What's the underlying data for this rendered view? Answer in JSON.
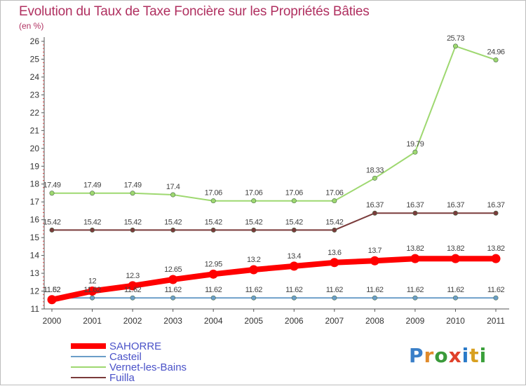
{
  "header": {
    "title": "Evolution du Taux de Taxe Foncière sur les Propriétés Bâties",
    "unit": "(en %)"
  },
  "logo": {
    "text": "Proxiti"
  },
  "chart_data": {
    "type": "line",
    "title": "Evolution du Taux de Taxe Foncière sur les Propriétés Bâties",
    "ylabel": "(en %)",
    "xlabel": "",
    "x": [
      "2000",
      "2001",
      "2002",
      "2003",
      "2004",
      "2005",
      "2006",
      "2007",
      "2008",
      "2009",
      "2010",
      "2011"
    ],
    "ylim": [
      11,
      26
    ],
    "yticks": [
      11,
      12,
      13,
      14,
      15,
      16,
      17,
      18,
      19,
      20,
      21,
      22,
      23,
      24,
      25,
      26
    ],
    "legend_position": "bottom-left",
    "grid": false,
    "series": [
      {
        "name": "SAHORRE",
        "color": "#ff0000",
        "emphasis": true,
        "values": [
          11.52,
          12,
          12.3,
          12.65,
          12.95,
          13.2,
          13.4,
          13.6,
          13.7,
          13.82,
          13.82,
          13.82
        ],
        "labels": [
          "11.52",
          "12",
          "12.3",
          "12.65",
          "12.95",
          "13.2",
          "13.4",
          "13.6",
          "13.7",
          "13.82",
          "13.82",
          "13.82"
        ]
      },
      {
        "name": "Casteil",
        "color": "#6b9ec8",
        "emphasis": false,
        "values": [
          11.62,
          11.62,
          11.62,
          11.62,
          11.62,
          11.62,
          11.62,
          11.62,
          11.62,
          11.62,
          11.62,
          11.62
        ],
        "labels": [
          "11.62",
          "11.62",
          "11.62",
          "11.62",
          "11.62",
          "11.62",
          "11.62",
          "11.62",
          "11.62",
          "11.62",
          "11.62",
          "11.62"
        ]
      },
      {
        "name": "Vernet-les-Bains",
        "color": "#9ed870",
        "emphasis": false,
        "values": [
          17.49,
          17.49,
          17.49,
          17.4,
          17.06,
          17.06,
          17.06,
          17.06,
          18.33,
          19.79,
          25.73,
          24.96
        ],
        "labels": [
          "17.49",
          "17.49",
          "17.49",
          "17.4",
          "17.06",
          "17.06",
          "17.06",
          "17.06",
          "18.33",
          "19.79",
          "25.73",
          "24.96"
        ]
      },
      {
        "name": "Fuilla",
        "color": "#7a3b3b",
        "emphasis": false,
        "values": [
          15.42,
          15.42,
          15.42,
          15.42,
          15.42,
          15.42,
          15.42,
          15.42,
          16.37,
          16.37,
          16.37,
          16.37
        ],
        "labels": [
          "15.42",
          "15.42",
          "15.42",
          "15.42",
          "15.42",
          "15.42",
          "15.42",
          "15.42",
          "16.37",
          "16.37",
          "16.37",
          "16.37"
        ]
      }
    ]
  }
}
